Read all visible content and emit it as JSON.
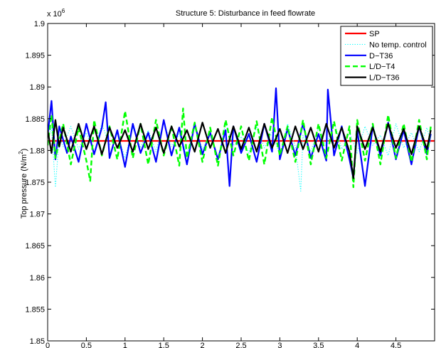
{
  "chart_data": {
    "type": "line",
    "title": "Structure 5: Disturbance in feed flowrate",
    "xlabel": "",
    "ylabel": "Top pressure (N/m",
    "ylabel_sup": "2",
    "ylabel_close": ")",
    "y_multiplier": "x 10",
    "y_multiplier_exp": "6",
    "xlim": [
      0,
      5
    ],
    "ylim": [
      1.85,
      1.9
    ],
    "x_ticks": [
      "0",
      "0.5",
      "1",
      "1.5",
      "2",
      "2.5",
      "3",
      "3.5",
      "4",
      "4.5"
    ],
    "x_tick_values": [
      0,
      0.5,
      1,
      1.5,
      2,
      2.5,
      3,
      3.5,
      4,
      4.5
    ],
    "y_ticks": [
      "1.85",
      "1.855",
      "1.86",
      "1.865",
      "1.87",
      "1.875",
      "1.88",
      "1.885",
      "1.89",
      "1.895",
      "1.9"
    ],
    "y_tick_values": [
      1.85,
      1.855,
      1.86,
      1.865,
      1.87,
      1.875,
      1.88,
      1.885,
      1.89,
      1.895,
      1.9
    ],
    "grid": false,
    "legend_position": "top-right",
    "series": [
      {
        "name": "SP",
        "color": "#ff0000",
        "style": "solid",
        "x": [
          0,
          5
        ],
        "values": [
          1.8815,
          1.8815
        ]
      },
      {
        "name": "No temp. control",
        "color": "#00ffff",
        "style": "dotted",
        "x": [
          0,
          0.05,
          0.1,
          0.15,
          0.2,
          0.3,
          0.4,
          0.5,
          0.6,
          0.7,
          0.8,
          0.9,
          1.0,
          1.1,
          1.2,
          1.3,
          1.4,
          1.5,
          1.6,
          1.7,
          1.8,
          1.9,
          2.0,
          2.1,
          2.2,
          2.3,
          2.4,
          2.5,
          2.6,
          2.7,
          2.8,
          2.9,
          3.0,
          3.1,
          3.2,
          3.27,
          3.3,
          3.4,
          3.5,
          3.6,
          3.7,
          3.8,
          3.9,
          4.0,
          4.1,
          4.2,
          4.3,
          4.4,
          4.5,
          4.6,
          4.7,
          4.8,
          4.9,
          4.95
        ],
        "values": [
          1.8818,
          1.8836,
          1.8742,
          1.8822,
          1.8806,
          1.8838,
          1.8802,
          1.8828,
          1.8796,
          1.8842,
          1.8808,
          1.8826,
          1.8788,
          1.8836,
          1.8804,
          1.8832,
          1.8798,
          1.8846,
          1.8806,
          1.8826,
          1.8794,
          1.8838,
          1.8802,
          1.8828,
          1.8786,
          1.8844,
          1.8808,
          1.8822,
          1.8796,
          1.8838,
          1.8804,
          1.8828,
          1.8792,
          1.8842,
          1.8806,
          1.8736,
          1.8824,
          1.8798,
          1.8836,
          1.8806,
          1.8846,
          1.8802,
          1.8828,
          1.8796,
          1.8838,
          1.8808,
          1.8824,
          1.8792,
          1.8842,
          1.8804,
          1.8828,
          1.8798,
          1.8836,
          1.8812
        ]
      },
      {
        "name": "D−T36",
        "color": "#0000ff",
        "style": "solid",
        "x": [
          0,
          0.05,
          0.1,
          0.15,
          0.25,
          0.3,
          0.4,
          0.5,
          0.6,
          0.7,
          0.75,
          0.8,
          0.9,
          1.0,
          1.1,
          1.2,
          1.3,
          1.4,
          1.5,
          1.6,
          1.7,
          1.8,
          1.9,
          2.0,
          2.1,
          2.2,
          2.3,
          2.35,
          2.4,
          2.5,
          2.6,
          2.7,
          2.8,
          2.9,
          2.95,
          3.0,
          3.1,
          3.2,
          3.3,
          3.4,
          3.5,
          3.6,
          3.62,
          3.7,
          3.8,
          3.9,
          3.95,
          4.0,
          4.1,
          4.2,
          4.3,
          4.4,
          4.5,
          4.6,
          4.7,
          4.8,
          4.9,
          4.95
        ],
        "values": [
          1.8824,
          1.8878,
          1.8786,
          1.8838,
          1.8796,
          1.8822,
          1.8782,
          1.8842,
          1.8794,
          1.8836,
          1.8876,
          1.8788,
          1.8832,
          1.8774,
          1.8842,
          1.8796,
          1.8828,
          1.8782,
          1.8848,
          1.8792,
          1.8836,
          1.8778,
          1.8842,
          1.8794,
          1.8828,
          1.8786,
          1.8832,
          1.8744,
          1.8838,
          1.8796,
          1.8826,
          1.8782,
          1.8842,
          1.8798,
          1.8898,
          1.8786,
          1.8834,
          1.8792,
          1.8842,
          1.8788,
          1.8826,
          1.8784,
          1.8896,
          1.8792,
          1.8838,
          1.8786,
          1.8756,
          1.8832,
          1.8744,
          1.8838,
          1.8792,
          1.8844,
          1.8786,
          1.8832,
          1.8778,
          1.8838,
          1.8794,
          1.8826
        ]
      },
      {
        "name": "L/D−T4",
        "color": "#00ff00",
        "style": "dashed",
        "x": [
          0,
          0.05,
          0.1,
          0.2,
          0.3,
          0.4,
          0.5,
          0.55,
          0.6,
          0.7,
          0.8,
          0.9,
          1.0,
          1.1,
          1.2,
          1.3,
          1.4,
          1.5,
          1.6,
          1.7,
          1.75,
          1.8,
          1.9,
          2.0,
          2.1,
          2.2,
          2.3,
          2.4,
          2.5,
          2.6,
          2.7,
          2.8,
          2.9,
          3.0,
          3.1,
          3.2,
          3.3,
          3.4,
          3.5,
          3.6,
          3.7,
          3.8,
          3.9,
          3.95,
          4.0,
          4.1,
          4.2,
          4.3,
          4.4,
          4.5,
          4.6,
          4.7,
          4.8,
          4.9,
          4.95
        ],
        "values": [
          1.8808,
          1.8856,
          1.8788,
          1.8842,
          1.8778,
          1.8836,
          1.8784,
          1.8752,
          1.8848,
          1.8792,
          1.8838,
          1.8786,
          1.8862,
          1.8788,
          1.8842,
          1.8778,
          1.8848,
          1.8792,
          1.8838,
          1.8776,
          1.8866,
          1.8788,
          1.8844,
          1.8782,
          1.8836,
          1.8776,
          1.8848,
          1.8792,
          1.8838,
          1.8784,
          1.8846,
          1.8778,
          1.8852,
          1.8792,
          1.8838,
          1.8782,
          1.8848,
          1.8778,
          1.8842,
          1.8788,
          1.8846,
          1.8784,
          1.8838,
          1.8742,
          1.8848,
          1.8784,
          1.8842,
          1.8778,
          1.8856,
          1.8788,
          1.8842,
          1.8782,
          1.8848,
          1.8786,
          1.8838
        ]
      },
      {
        "name": "L/D−T36",
        "color": "#000000",
        "style": "solid",
        "x": [
          0,
          0.05,
          0.1,
          0.15,
          0.2,
          0.3,
          0.4,
          0.5,
          0.6,
          0.7,
          0.8,
          0.9,
          1.0,
          1.1,
          1.2,
          1.3,
          1.4,
          1.5,
          1.6,
          1.7,
          1.8,
          1.9,
          2.0,
          2.1,
          2.2,
          2.3,
          2.4,
          2.5,
          2.6,
          2.7,
          2.8,
          2.9,
          3.0,
          3.1,
          3.2,
          3.3,
          3.4,
          3.5,
          3.6,
          3.7,
          3.8,
          3.9,
          3.95,
          4.0,
          4.1,
          4.2,
          4.3,
          4.4,
          4.5,
          4.6,
          4.7,
          4.8,
          4.9,
          4.95
        ],
        "values": [
          1.8832,
          1.8796,
          1.8848,
          1.8806,
          1.8836,
          1.8798,
          1.8842,
          1.8802,
          1.8838,
          1.8794,
          1.8836,
          1.8804,
          1.8832,
          1.8798,
          1.8842,
          1.8802,
          1.8836,
          1.8796,
          1.8838,
          1.8806,
          1.8832,
          1.8798,
          1.8844,
          1.8804,
          1.8834,
          1.8796,
          1.8838,
          1.8802,
          1.8836,
          1.8798,
          1.8842,
          1.8804,
          1.8834,
          1.8796,
          1.8838,
          1.8802,
          1.8836,
          1.8798,
          1.8842,
          1.8804,
          1.8836,
          1.8798,
          1.8756,
          1.8838,
          1.8802,
          1.8836,
          1.8798,
          1.8842,
          1.8804,
          1.8834,
          1.8794,
          1.8838,
          1.8802,
          1.8832
        ]
      }
    ]
  }
}
